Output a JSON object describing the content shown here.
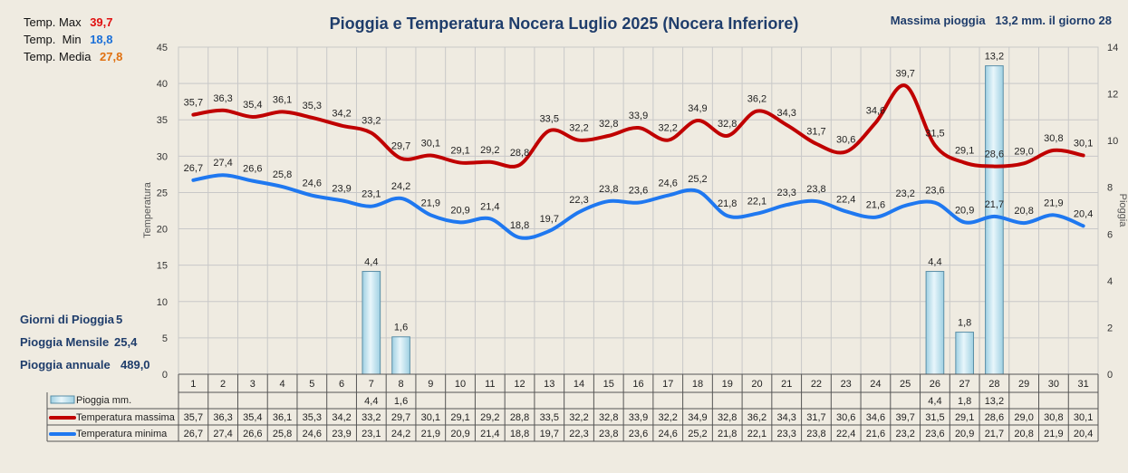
{
  "title": "Pioggia e Temperatura Nocera Luglio 2025 (Nocera Inferiore)",
  "max_rain": {
    "label": "Massima pioggia",
    "value": "13,2 mm. il giorno 28"
  },
  "temp_stats": [
    {
      "label": "Temp. Max",
      "value": "39,7",
      "color": "#e01010"
    },
    {
      "label": "Temp.  Min",
      "value": "18,8",
      "color": "#1a6fd8"
    },
    {
      "label": "Temp. Media",
      "value": "27,8",
      "color": "#e07010"
    }
  ],
  "rain_stats": [
    {
      "label": "Giorni di Pioggia",
      "value": "5"
    },
    {
      "label": "Pioggia Mensile",
      "value": "25,4"
    },
    {
      "label": "Pioggia annuale",
      "value": "489,0"
    }
  ],
  "colors": {
    "max_line": "#c00000",
    "min_line": "#1f78f0",
    "rain_bar": "#bfe3ef",
    "rain_border": "#5a8fa8",
    "grid": "#c8c8c8"
  },
  "chart_data": {
    "type": "bar",
    "title": "Pioggia e Temperatura Nocera Luglio 2025 (Nocera Inferiore)",
    "x": [
      "1",
      "2",
      "3",
      "4",
      "5",
      "6",
      "7",
      "8",
      "9",
      "10",
      "11",
      "12",
      "13",
      "14",
      "15",
      "16",
      "17",
      "18",
      "19",
      "20",
      "21",
      "22",
      "23",
      "24",
      "25",
      "26",
      "27",
      "28",
      "29",
      "30",
      "31"
    ],
    "ylabel": "Temperatura",
    "ylabel2": "Pioggia",
    "ylim": [
      0,
      45
    ],
    "yticks": [
      "0",
      "5",
      "10",
      "15",
      "20",
      "25",
      "30",
      "35",
      "40",
      "45"
    ],
    "ylim2": [
      0,
      14
    ],
    "yticks2": [
      "0",
      "2",
      "4",
      "6",
      "8",
      "10",
      "12",
      "14"
    ],
    "grid": true,
    "legend": "bottom-table",
    "series": [
      {
        "name": "Pioggia mm.",
        "type": "bar",
        "axis": "right",
        "values": [
          null,
          null,
          null,
          null,
          null,
          null,
          4.4,
          1.6,
          null,
          null,
          null,
          null,
          null,
          null,
          null,
          null,
          null,
          null,
          null,
          null,
          null,
          null,
          null,
          null,
          null,
          4.4,
          1.8,
          13.2,
          null,
          null,
          null
        ],
        "labels": [
          "",
          "",
          "",
          "",
          "",
          "",
          "4,4",
          "1,6",
          "",
          "",
          "",
          "",
          "",
          "",
          "",
          "",
          "",
          "",
          "",
          "",
          "",
          "",
          "",
          "",
          "",
          "4,4",
          "1,8",
          "13,2",
          "",
          "",
          ""
        ]
      },
      {
        "name": "Temperatura massima",
        "type": "line",
        "axis": "left",
        "values": [
          35.7,
          36.3,
          35.4,
          36.1,
          35.3,
          34.2,
          33.2,
          29.7,
          30.1,
          29.1,
          29.2,
          28.8,
          33.5,
          32.2,
          32.8,
          33.9,
          32.2,
          34.9,
          32.8,
          36.2,
          34.3,
          31.7,
          30.6,
          34.6,
          39.7,
          31.5,
          29.1,
          28.6,
          29.0,
          30.8,
          30.1
        ],
        "labels": [
          "35,7",
          "36,3",
          "35,4",
          "36,1",
          "35,3",
          "34,2",
          "33,2",
          "29,7",
          "30,1",
          "29,1",
          "29,2",
          "28,8",
          "33,5",
          "32,2",
          "32,8",
          "33,9",
          "32,2",
          "34,9",
          "32,8",
          "36,2",
          "34,3",
          "31,7",
          "30,6",
          "34,6",
          "39,7",
          "31,5",
          "29,1",
          "28,6",
          "29,0",
          "30,8",
          "30,1"
        ]
      },
      {
        "name": "Temperatura minima",
        "type": "line",
        "axis": "left",
        "values": [
          26.7,
          27.4,
          26.6,
          25.8,
          24.6,
          23.9,
          23.1,
          24.2,
          21.9,
          20.9,
          21.4,
          18.8,
          19.7,
          22.3,
          23.8,
          23.6,
          24.6,
          25.2,
          21.8,
          22.1,
          23.3,
          23.8,
          22.4,
          21.6,
          23.2,
          23.6,
          20.9,
          21.7,
          20.8,
          21.9,
          20.4
        ],
        "labels": [
          "26,7",
          "27,4",
          "26,6",
          "25,8",
          "24,6",
          "23,9",
          "23,1",
          "24,2",
          "21,9",
          "20,9",
          "21,4",
          "18,8",
          "19,7",
          "22,3",
          "23,8",
          "23,6",
          "24,6",
          "25,2",
          "21,8",
          "22,1",
          "23,3",
          "23,8",
          "22,4",
          "21,6",
          "23,2",
          "23,6",
          "20,9",
          "21,7",
          "20,8",
          "21,9",
          "20,4"
        ]
      }
    ]
  }
}
